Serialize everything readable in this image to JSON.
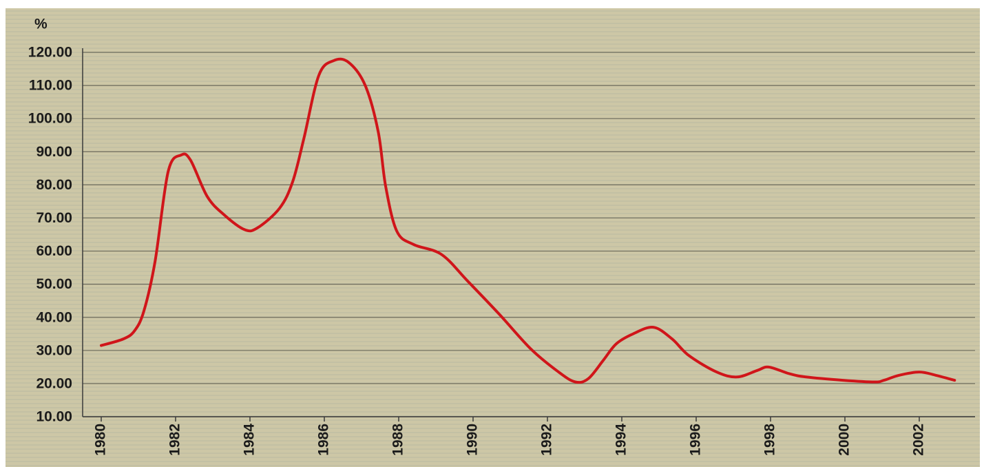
{
  "chart_data": {
    "type": "line",
    "y_label": "%",
    "xlim": [
      1979.5,
      2003.5
    ],
    "xticks": [
      1980,
      1982,
      1984,
      1986,
      1988,
      1990,
      1992,
      1994,
      1996,
      1998,
      2000,
      2002
    ],
    "ylim": [
      10,
      120
    ],
    "yticks": [
      {
        "value": 10,
        "label": "10.00"
      },
      {
        "value": 20,
        "label": "20.00"
      },
      {
        "value": 30,
        "label": "30.00"
      },
      {
        "value": 40,
        "label": "40.00"
      },
      {
        "value": 50,
        "label": "50.00"
      },
      {
        "value": 60,
        "label": "60.00"
      },
      {
        "value": 70,
        "label": "70.00"
      },
      {
        "value": 80,
        "label": "80.00"
      },
      {
        "value": 90,
        "label": "90.00"
      },
      {
        "value": 100,
        "label": "100.00"
      },
      {
        "value": 110,
        "label": "110.00"
      },
      {
        "value": 120,
        "label": "120.00"
      }
    ],
    "grid": true,
    "x": [
      1980.0,
      1980.6,
      1980.9,
      1981.15,
      1981.45,
      1981.8,
      1982.15,
      1982.4,
      1982.85,
      1983.3,
      1983.85,
      1984.2,
      1984.8,
      1985.15,
      1985.45,
      1985.85,
      1986.25,
      1986.65,
      1987.1,
      1987.45,
      1987.65,
      1987.95,
      1988.4,
      1989.15,
      1989.85,
      1990.7,
      1991.55,
      1992.3,
      1992.75,
      1993.1,
      1993.5,
      1993.85,
      1994.3,
      1994.85,
      1995.35,
      1995.8,
      1996.55,
      1997.1,
      1997.65,
      1997.95,
      1998.5,
      1998.95,
      1999.95,
      2000.8,
      2001.05,
      2001.45,
      2002.0,
      2002.45,
      2002.95
    ],
    "series": [
      {
        "color": "#d0151a",
        "values": [
          31.5,
          33.5,
          36,
          42,
          57,
          84,
          89,
          87.5,
          76.5,
          71,
          66.5,
          67,
          73,
          81,
          94,
          113,
          117.5,
          117,
          110,
          96,
          79.5,
          66,
          62,
          59,
          51,
          41,
          30.5,
          23.5,
          20.5,
          21.5,
          27,
          32,
          35,
          37,
          33.5,
          28.5,
          23.5,
          22,
          24,
          25,
          23,
          22,
          21,
          20.5,
          21,
          22.5,
          23.5,
          22.5,
          21
        ]
      }
    ]
  }
}
